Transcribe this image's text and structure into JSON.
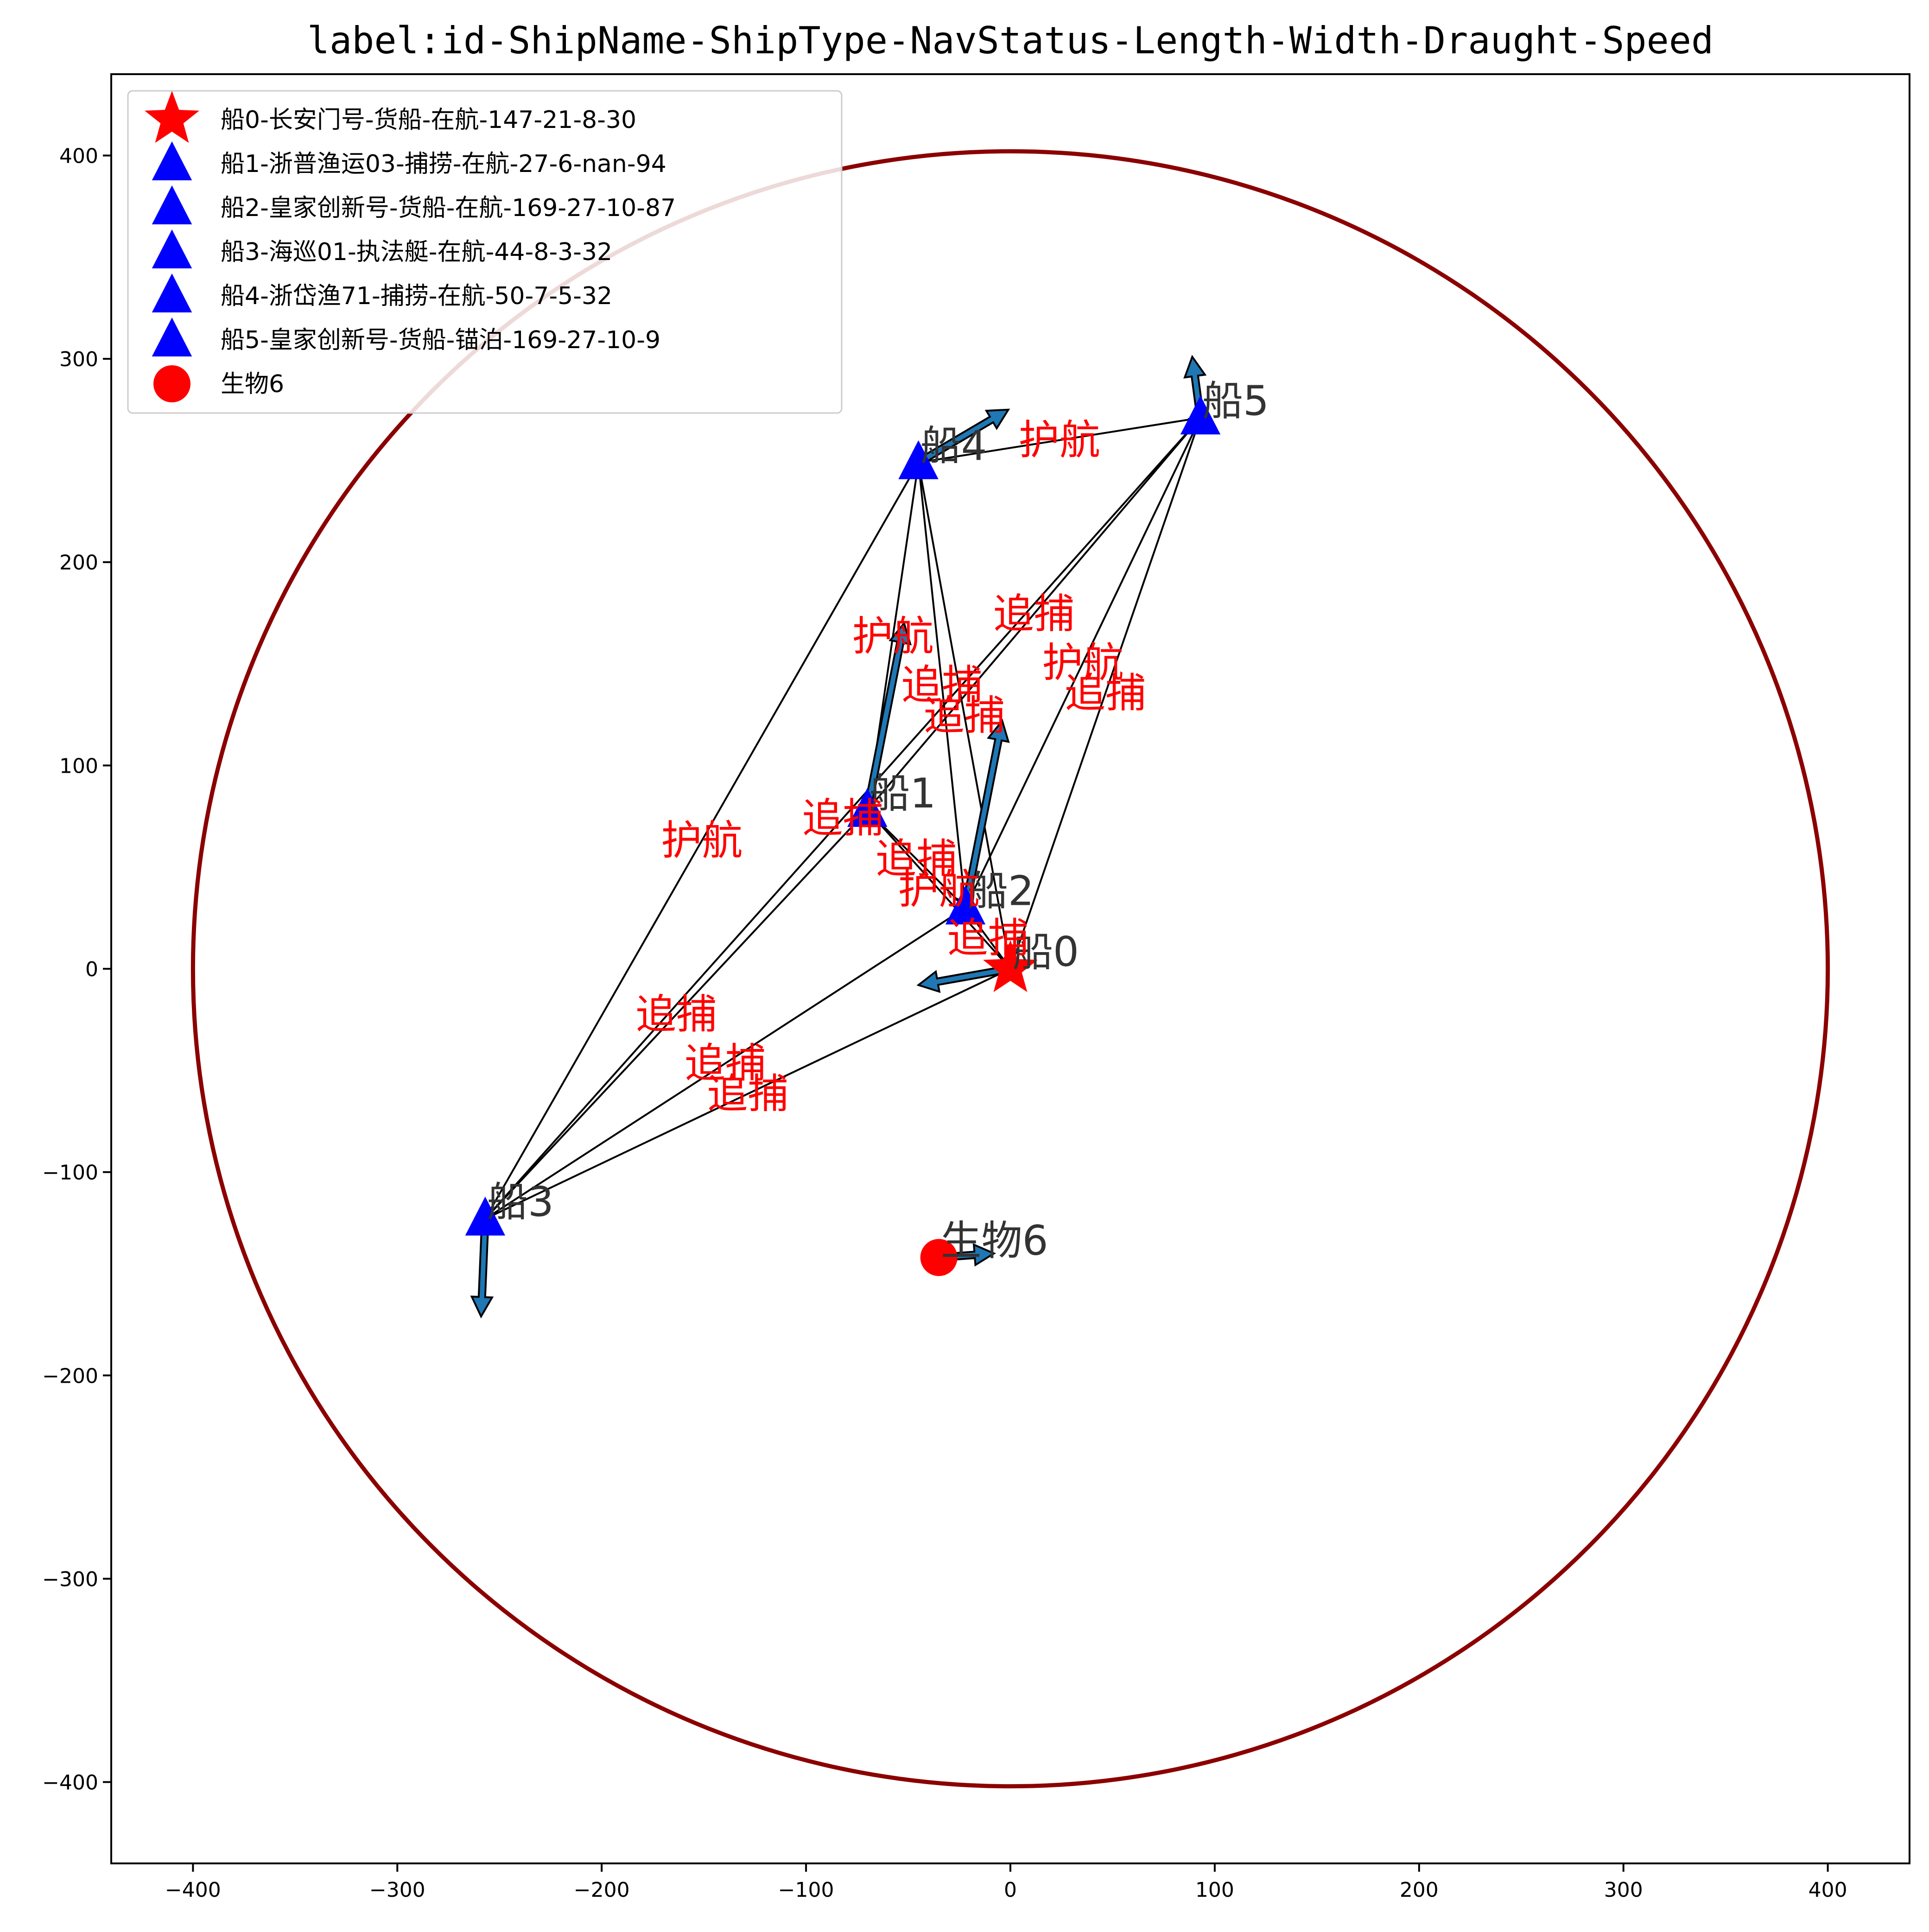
{
  "chart_data": {
    "type": "scatter",
    "title": "label:id-ShipName-ShipType-NavStatus-Length-Width-Draught-Speed",
    "xlabel": "",
    "ylabel": "",
    "xlim": [
      -440,
      440
    ],
    "ylim": [
      -440,
      440
    ],
    "xticks": [
      -400,
      -300,
      -200,
      -100,
      0,
      100,
      200,
      300,
      400
    ],
    "yticks": [
      -400,
      -300,
      -200,
      -100,
      0,
      100,
      200,
      300,
      400
    ],
    "xtick_labels": [
      "−400",
      "−300",
      "−200",
      "−100",
      "0",
      "100",
      "200",
      "300",
      "400"
    ],
    "ytick_labels": [
      "−400",
      "−300",
      "−200",
      "−100",
      "0",
      "100",
      "200",
      "300",
      "400"
    ],
    "grid": false,
    "legend_position": "top-left",
    "range_circle": {
      "center": [
        0,
        0
      ],
      "radius": 400,
      "color": "#8b0000"
    },
    "colors": {
      "ship0": "#ff0000",
      "ship": "#0000ff",
      "creature": "#ff0000",
      "relation_text": "#ff0000",
      "vector": "#1f77b4",
      "edge": "#000000"
    },
    "points": [
      {
        "id": 0,
        "label": "船0",
        "legend": "船0-长安门号-货船-在航-147-21-8-30",
        "x": 0,
        "y": 0,
        "marker": "star",
        "color": "#ff0000",
        "vector": [
          -45,
          -8
        ]
      },
      {
        "id": 1,
        "label": "船1",
        "legend": "船1-浙普渔运03-捕捞-在航-27-6-nan-94",
        "x": -70,
        "y": 78,
        "marker": "triangle",
        "color": "#0000ff",
        "vector": [
          18,
          92
        ]
      },
      {
        "id": 2,
        "label": "船2",
        "legend": "船2-皇家创新号-货船-在航-169-27-10-87",
        "x": -22,
        "y": 30,
        "marker": "triangle",
        "color": "#0000ff",
        "vector": [
          18,
          92
        ]
      },
      {
        "id": 3,
        "label": "船3",
        "legend": "船3-海巡01-执法艇-在航-44-8-3-32",
        "x": -257,
        "y": -123,
        "marker": "triangle",
        "color": "#0000ff",
        "vector": [
          -2,
          -48
        ]
      },
      {
        "id": 4,
        "label": "船4",
        "legend": "船4-浙岱渔71-捕捞-在航-50-7-5-32",
        "x": -45,
        "y": 249,
        "marker": "triangle",
        "color": "#0000ff",
        "vector": [
          44,
          26
        ]
      },
      {
        "id": 5,
        "label": "船5",
        "legend": "船5-皇家创新号-货船-锚泊-169-27-10-9",
        "x": 93,
        "y": 271,
        "marker": "triangle",
        "color": "#0000ff",
        "vector": [
          -4,
          30
        ]
      },
      {
        "id": 6,
        "label": "生物6",
        "legend": "生物6",
        "x": -35,
        "y": -142,
        "marker": "circle",
        "color": "#ff0000",
        "vector": [
          27,
          2
        ]
      }
    ],
    "edges": [
      {
        "from": 1,
        "to": 0,
        "label": "护航"
      },
      {
        "from": 2,
        "to": 0,
        "label": "追捕"
      },
      {
        "from": 3,
        "to": 0,
        "label": "追捕"
      },
      {
        "from": 4,
        "to": 0,
        "label": "追捕"
      },
      {
        "from": 5,
        "to": 0,
        "label": "追捕"
      },
      {
        "from": 1,
        "to": 4,
        "label": "护航"
      },
      {
        "from": 1,
        "to": 5,
        "label": "追捕"
      },
      {
        "from": 2,
        "to": 4,
        "label": "追捕"
      },
      {
        "from": 2,
        "to": 5,
        "label": "护航"
      },
      {
        "from": 3,
        "to": 1,
        "label": "追捕"
      },
      {
        "from": 3,
        "to": 2,
        "label": "追捕"
      },
      {
        "from": 3,
        "to": 4,
        "label": "护航"
      },
      {
        "from": 3,
        "to": 5,
        "label": "追捕"
      },
      {
        "from": 4,
        "to": 5,
        "label": "护航"
      },
      {
        "from": 1,
        "to": 2,
        "label": "追捕"
      }
    ]
  }
}
